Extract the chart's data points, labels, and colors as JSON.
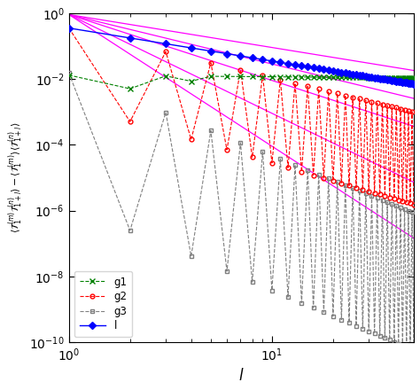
{
  "xlabel": "$l$",
  "ylim_min": 1e-10,
  "ylim_max": 1.0,
  "xlim_min": 1,
  "xlim_max": 50,
  "g1_amp": 0.013,
  "g1_slope": -0.05,
  "g2_amp": 0.35,
  "g2_env_slope": -1.5,
  "g3_amp": 0.015,
  "g3_env_slope": -2.5,
  "l_amp": 0.35,
  "l_slope": -1.0,
  "magenta_slopes": [
    -1.0,
    -1.5,
    -2.0,
    -3.0,
    -4.0
  ],
  "magenta_amp": 0.9,
  "legend_labels": [
    "g1",
    "g2",
    "g3",
    "l"
  ]
}
